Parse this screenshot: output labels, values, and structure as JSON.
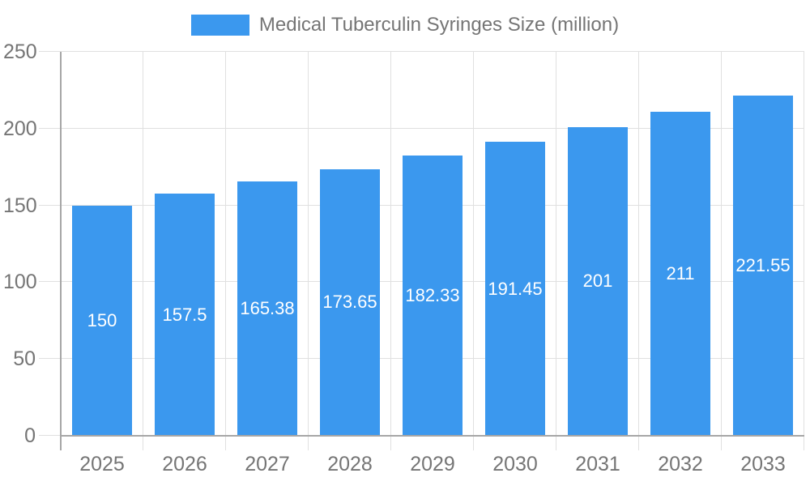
{
  "legend": {
    "label": "Medical Tuberculin Syringes Size (million)"
  },
  "chart_data": {
    "type": "bar",
    "title": "Medical Tuberculin Syringes Size (million)",
    "categories": [
      "2025",
      "2026",
      "2027",
      "2028",
      "2029",
      "2030",
      "2031",
      "2032",
      "2033"
    ],
    "series": [
      {
        "name": "Medical Tuberculin Syringes Size (million)",
        "values": [
          150,
          157.5,
          165.38,
          173.65,
          182.33,
          191.45,
          201,
          211,
          221.55
        ]
      }
    ],
    "value_labels": [
      "150",
      "157.5",
      "165.38",
      "173.65",
      "182.33",
      "191.45",
      "201",
      "211",
      "221.55"
    ],
    "xlabel": "",
    "ylabel": "",
    "ylim": [
      0,
      250
    ],
    "yticks": [
      0,
      50,
      100,
      150,
      200,
      250
    ],
    "grid": true,
    "legend_position": "top",
    "colors": {
      "bar": "#3b98ee",
      "grid_line": "#e0e0e0",
      "axis_line": "#a6a6a6",
      "tick_label": "#757575",
      "value_label": "#ffffff",
      "legend_text": "#757575",
      "background": "#ffffff"
    }
  }
}
